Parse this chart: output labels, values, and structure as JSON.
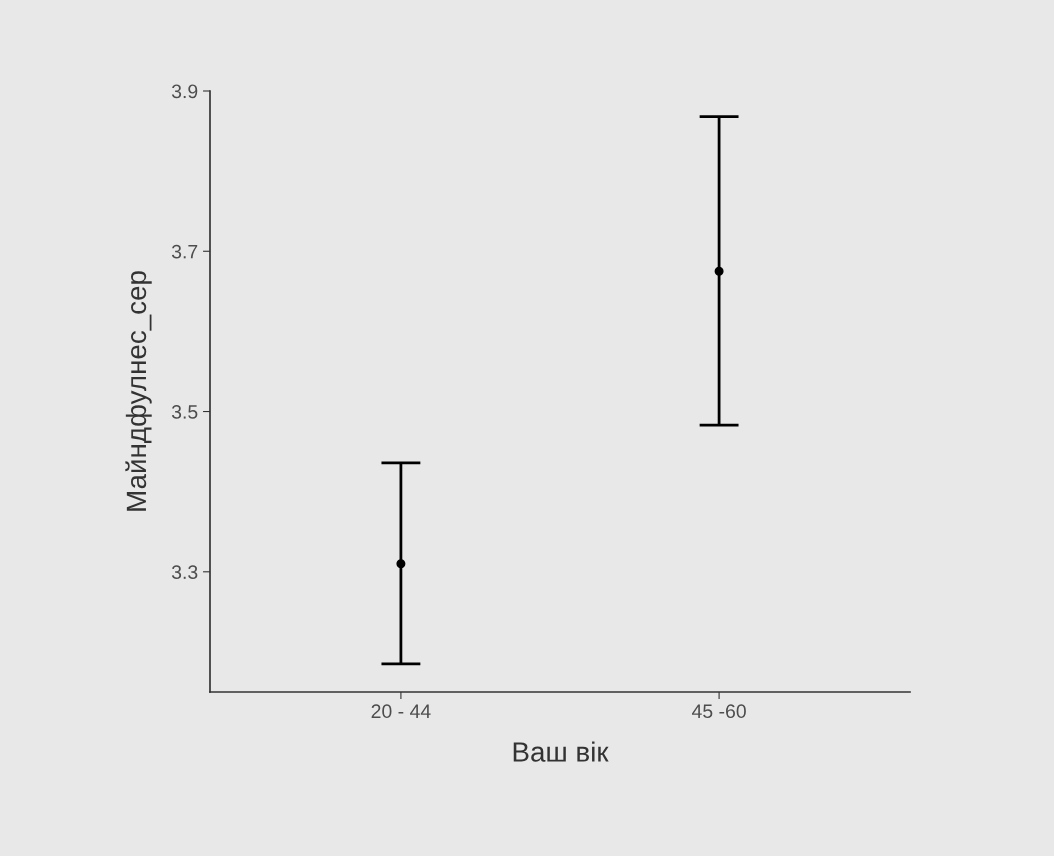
{
  "chart_data": {
    "type": "scatter",
    "xlabel": "Ваш вік",
    "ylabel": "Майндфулнес_сер",
    "categories": [
      "20 - 44",
      "45 -60"
    ],
    "series": [
      {
        "color": "#000000",
        "values": [
          3.31,
          3.675
        ],
        "errors": [
          [
            3.185,
            3.436
          ],
          [
            3.483,
            3.868
          ]
        ]
      }
    ],
    "ylim": [
      3.15,
      3.9
    ],
    "yticks": [
      3.3,
      3.5,
      3.7,
      3.9
    ],
    "grid": false,
    "marker": "circle"
  }
}
